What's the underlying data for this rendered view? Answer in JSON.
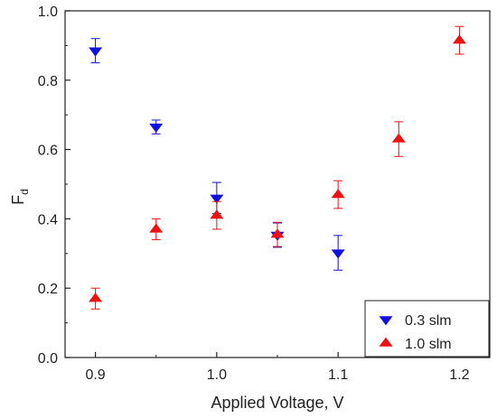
{
  "chart_data": {
    "type": "scatter",
    "title": "",
    "xlabel": "Applied Voltage, V",
    "ylabel_main": "F",
    "ylabel_sub": "d",
    "xlim": [
      0.875,
      1.225
    ],
    "ylim": [
      0.0,
      1.0
    ],
    "x_ticks": [
      0.9,
      1.0,
      1.1,
      1.2
    ],
    "x_tick_labels": [
      "0.9",
      "1.0",
      "1.1",
      "1.2"
    ],
    "y_ticks": [
      0.0,
      0.2,
      0.4,
      0.6,
      0.8,
      1.0
    ],
    "y_tick_labels": [
      "0.0",
      "0.2",
      "0.4",
      "0.6",
      "0.8",
      "1.0"
    ],
    "grid": false,
    "legend_position": "bottom-right",
    "series": [
      {
        "name": "0.3 slm",
        "marker": "triangle-down",
        "color": "#1010e0",
        "x": [
          0.9,
          0.95,
          1.0,
          1.05,
          1.1
        ],
        "y": [
          0.885,
          0.665,
          0.46,
          0.353,
          0.302
        ],
        "err": [
          0.035,
          0.02,
          0.045,
          0.035,
          0.05
        ]
      },
      {
        "name": "1.0 slm",
        "marker": "triangle-up",
        "color": "#ee1111",
        "x": [
          0.9,
          0.95,
          1.0,
          1.05,
          1.1,
          1.15,
          1.2
        ],
        "y": [
          0.17,
          0.37,
          0.41,
          0.355,
          0.47,
          0.63,
          0.915
        ],
        "err": [
          0.03,
          0.03,
          0.04,
          0.035,
          0.04,
          0.05,
          0.04
        ]
      }
    ]
  }
}
